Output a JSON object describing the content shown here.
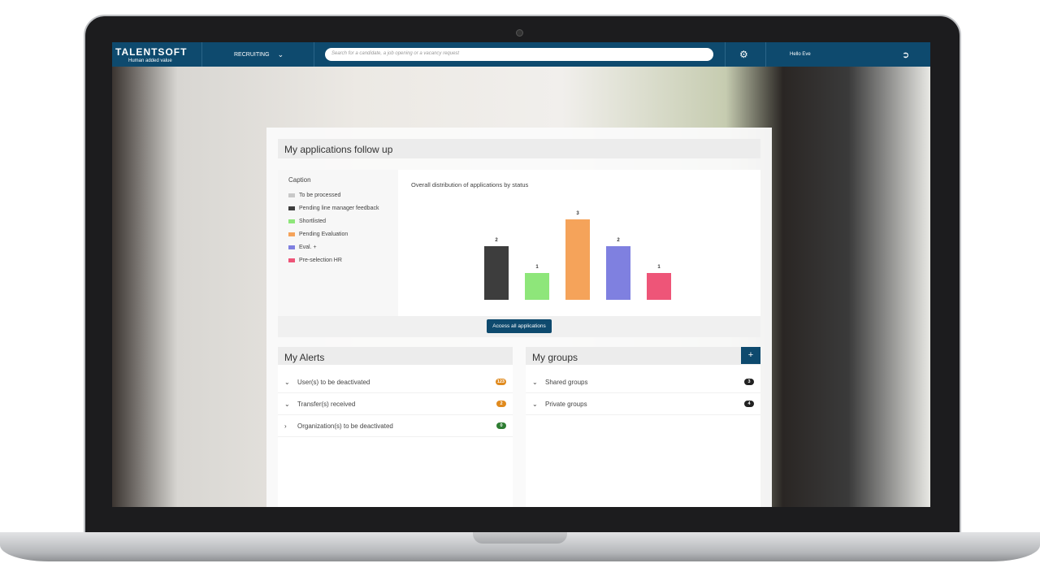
{
  "app": {
    "logo": "TALENTSOFT",
    "tagline": "Human added value",
    "module": "RECRUITING",
    "search_placeholder": "Search for a candidate, a job opening or a vacancy request",
    "greeting": "Hello Eve"
  },
  "follow": {
    "title": "My applications follow up",
    "caption": "Caption",
    "access_label": "Access all applications"
  },
  "chart_data": {
    "type": "bar",
    "title": "Overall distribution of applications by status",
    "categories": [
      "To be processed",
      "Pending line manager feedback",
      "Shortlisted",
      "Pending Evaluation",
      "Eval. +",
      "Pre-selection HR"
    ],
    "values": [
      0,
      2,
      1,
      3,
      2,
      1
    ],
    "colors": [
      "#c8c8c8",
      "#3d3d3d",
      "#8ee67a",
      "#f5a35a",
      "#7f80e0",
      "#ee5578"
    ],
    "legend": "left",
    "grid": false
  },
  "alerts": {
    "title": "My Alerts",
    "items": [
      {
        "label": "User(s) to be deactivated",
        "count": "123",
        "color": "#e08a1e",
        "expanded": true
      },
      {
        "label": "Transfer(s) received",
        "count": "2",
        "color": "#e08a1e",
        "expanded": true
      },
      {
        "label": "Organization(s) to be deactivated",
        "count": "0",
        "color": "#2e7d32",
        "expanded": false
      }
    ]
  },
  "groups": {
    "title": "My groups",
    "add": "+",
    "items": [
      {
        "label": "Shared groups",
        "count": "3",
        "color": "#222"
      },
      {
        "label": "Private groups",
        "count": "4",
        "color": "#222"
      }
    ]
  }
}
